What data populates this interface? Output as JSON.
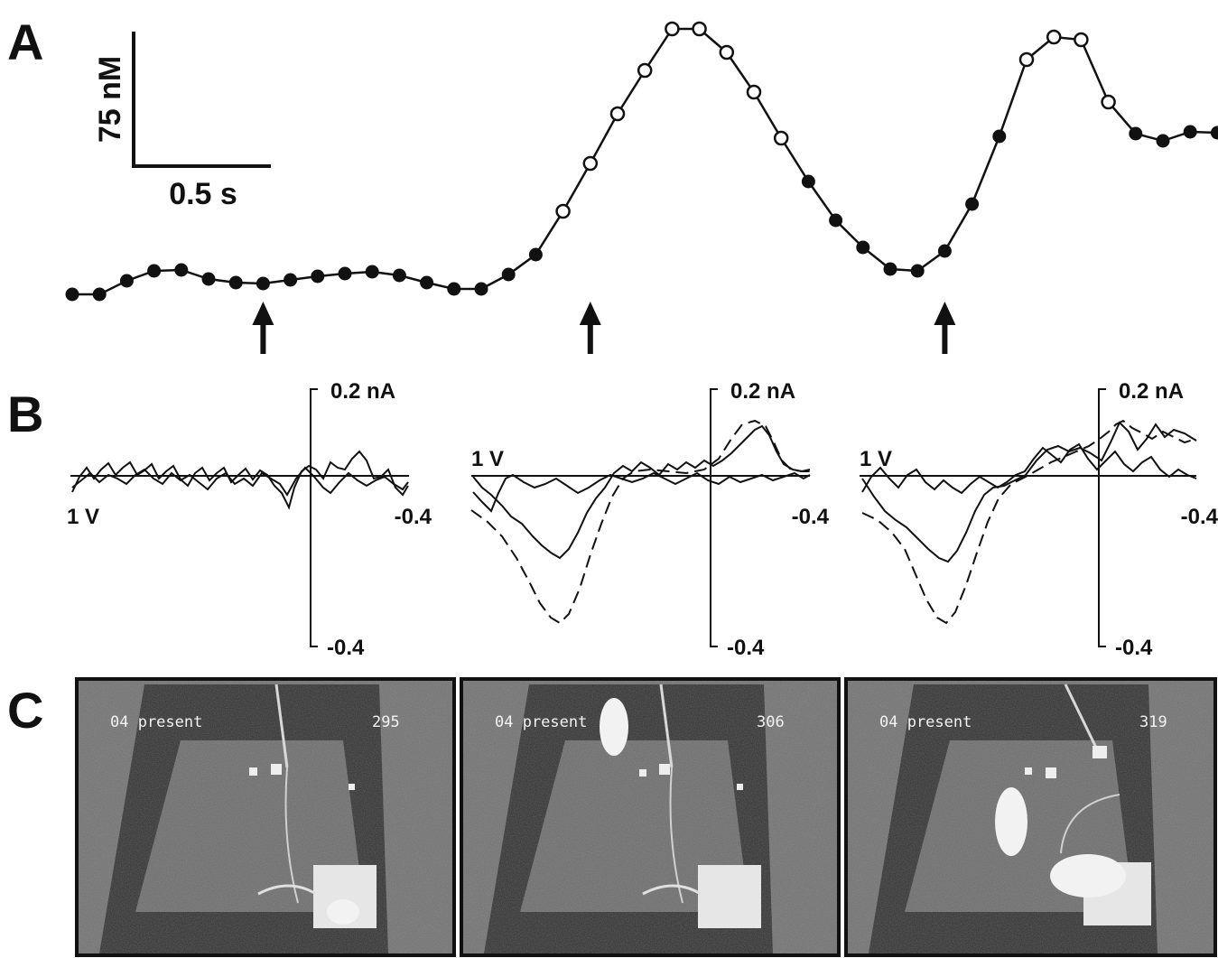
{
  "panels": {
    "a": "A",
    "b": "B",
    "c": "C"
  },
  "scale_bar": {
    "y_label": "75 nM",
    "x_label": "0.5 s"
  },
  "chart_data": [
    {
      "type": "line",
      "panel": "A",
      "sample_interval_s": 0.1,
      "filled_color": "#111111",
      "open_color": "#ffffff",
      "series": [
        {
          "values": [
            0,
            0,
            15,
            26,
            27,
            17,
            13,
            12,
            16,
            20,
            23,
            25,
            21,
            13,
            6,
            6,
            22,
            44,
            92,
            145,
            200,
            248,
            294,
            294,
            268,
            224,
            173,
            125,
            82,
            52,
            28,
            26,
            48,
            100,
            175,
            260,
            285,
            282,
            213,
            178,
            170,
            180,
            179,
            160,
            155
          ],
          "open_marker": [
            false,
            false,
            false,
            false,
            false,
            false,
            false,
            false,
            false,
            false,
            false,
            false,
            false,
            false,
            false,
            false,
            false,
            false,
            true,
            true,
            true,
            true,
            true,
            true,
            true,
            true,
            true,
            false,
            false,
            false,
            false,
            false,
            false,
            false,
            false,
            true,
            true,
            true,
            true,
            false,
            false,
            false,
            false,
            false,
            false
          ]
        }
      ],
      "arrows_at_index": [
        7,
        19,
        32
      ]
    },
    {
      "type": "line",
      "panel": "B",
      "subplots": [
        {
          "x_left_label": "1 V",
          "x_right_label": "-0.4",
          "y_top_label": "0.2 nA",
          "y_bottom_label": "-0.4"
        },
        {
          "x_left_label": "1 V",
          "x_right_label": "-0.4",
          "y_top_label": "0.2 nA",
          "y_bottom_label": "-0.4"
        },
        {
          "x_left_label": "1 V",
          "x_right_label": "-0.4",
          "y_top_label": "0.2 nA",
          "y_bottom_label": "-0.4"
        }
      ]
    }
  ],
  "frames": [
    {
      "text_left": "04 present",
      "text_right": "295"
    },
    {
      "text_left": "04 present",
      "text_right": "306"
    },
    {
      "text_left": "04 present",
      "text_right": "319"
    }
  ]
}
